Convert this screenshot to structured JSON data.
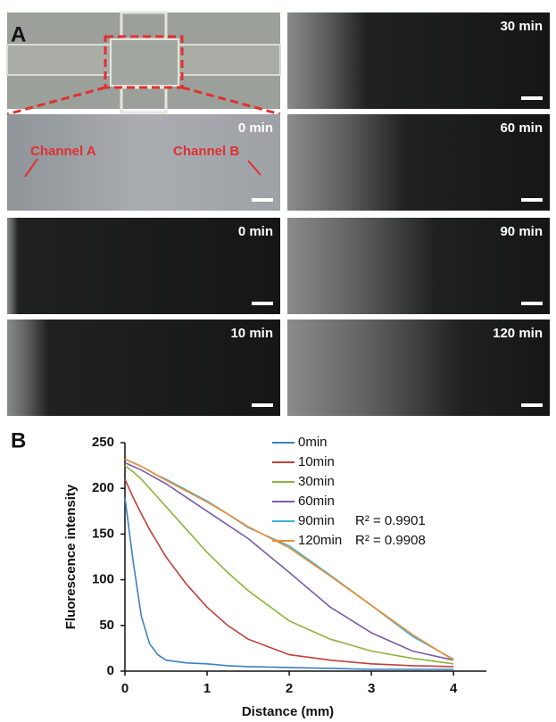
{
  "figure": {
    "panel_a_label": "A",
    "panel_b_label": "B",
    "panels": [
      {
        "time": "0 min",
        "annotations": [
          "Channel A",
          "Channel B"
        ]
      },
      {
        "time": "0 min"
      },
      {
        "time": "10 min"
      },
      {
        "time": "30 min"
      },
      {
        "time": "60 min"
      },
      {
        "time": "90 min"
      },
      {
        "time": "120 min"
      }
    ]
  },
  "chart_data": {
    "type": "line",
    "x_label": "Distance (mm)",
    "y_label": "Fluorescence intensity",
    "x": [
      0,
      0.1,
      0.2,
      0.3,
      0.4,
      0.5,
      0.75,
      1,
      1.25,
      1.5,
      2,
      2.5,
      3,
      3.5,
      4
    ],
    "xlim": [
      0,
      4.4
    ],
    "xticks": [
      0,
      1,
      2,
      3,
      4
    ],
    "ylim": [
      0,
      250
    ],
    "yticks": [
      0,
      50,
      100,
      150,
      200,
      250
    ],
    "series": [
      {
        "name": "0min",
        "color": "#3f7fc0",
        "values": [
          190,
          120,
          60,
          30,
          18,
          12,
          9,
          8,
          6,
          5,
          4,
          3,
          2,
          2,
          2
        ]
      },
      {
        "name": "10min",
        "color": "#c0403a",
        "values": [
          210,
          190,
          172,
          155,
          140,
          125,
          95,
          70,
          50,
          35,
          18,
          12,
          8,
          6,
          5
        ]
      },
      {
        "name": "30min",
        "color": "#8cb43c",
        "values": [
          225,
          218,
          210,
          200,
          190,
          180,
          155,
          130,
          108,
          88,
          55,
          35,
          22,
          14,
          8
        ]
      },
      {
        "name": "60min",
        "color": "#7b5aa6",
        "values": [
          228,
          224,
          220,
          215,
          210,
          205,
          190,
          175,
          160,
          145,
          108,
          70,
          42,
          22,
          12
        ]
      },
      {
        "name": "90min",
        "color": "#3fb0d8",
        "r_squared_label": "R² = 0.9901",
        "values": [
          232,
          228,
          224,
          219,
          214,
          210,
          198,
          186,
          172,
          157,
          137,
          105,
          72,
          38,
          13
        ]
      },
      {
        "name": "120min",
        "color": "#f08c30",
        "r_squared_label": "R² = 0.9908",
        "values": [
          232,
          228,
          224,
          219,
          214,
          209,
          197,
          185,
          172,
          158,
          135,
          104,
          72,
          40,
          12
        ]
      }
    ]
  }
}
